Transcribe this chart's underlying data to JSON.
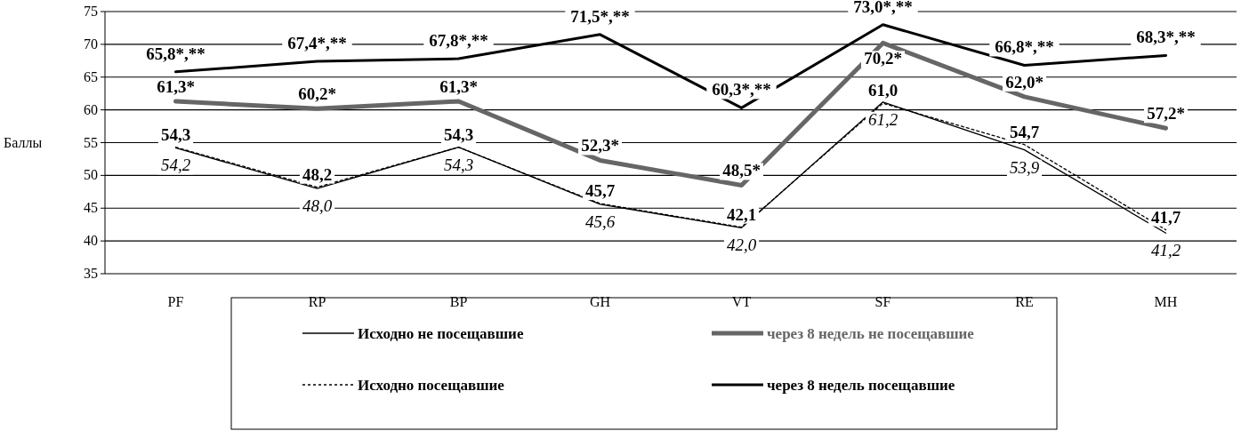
{
  "chart_data": {
    "type": "line",
    "ylabel": "Баллы",
    "categories": [
      "PF",
      "RP",
      "BP",
      "GH",
      "VT",
      "SF",
      "RE",
      "MH"
    ],
    "ylim": [
      35,
      75
    ],
    "yticks": [
      35,
      40,
      45,
      50,
      55,
      60,
      65,
      70,
      75
    ],
    "grid": "y",
    "legend": "bottom",
    "series": [
      {
        "name": "Исходно не посещавшие",
        "color": "#000000",
        "line_style": "solid",
        "values": [
          54.2,
          48.0,
          54.3,
          45.6,
          42.0,
          61.2,
          53.9,
          41.2
        ],
        "value_labels": [
          "54,2",
          "48,0",
          "54,3",
          "45,6",
          "42,0",
          "61,2",
          "53,9",
          "41,2"
        ]
      },
      {
        "name": "Исходно посещавшие",
        "color": "#000000",
        "line_style": "dotted",
        "values": [
          54.3,
          48.2,
          54.3,
          45.7,
          42.1,
          61.0,
          54.7,
          41.7
        ],
        "value_labels": [
          "54,3",
          "48,2",
          "54,3",
          "45,7",
          "42,1",
          "61,0",
          "54,7",
          "41,7"
        ]
      },
      {
        "name": "через 8 недель не посещавшие",
        "color": "#666666",
        "line_style": "solid",
        "values": [
          61.3,
          60.2,
          61.3,
          52.3,
          48.5,
          70.2,
          62.0,
          57.2
        ],
        "value_labels": [
          "61,3*",
          "60,2*",
          "61,3*",
          "52,3*",
          "48,5*",
          "70,2*",
          "62,0*",
          "57,2*"
        ]
      },
      {
        "name": "через 8 недель посещавшие",
        "color": "#000000",
        "line_style": "solid",
        "values": [
          65.8,
          67.4,
          67.8,
          71.5,
          60.3,
          73.0,
          66.8,
          68.3
        ],
        "value_labels": [
          "65,8*,**",
          "67,4*,**",
          "67,8*,**",
          "71,5*,**",
          "60,3*,**",
          "73,0*,**",
          "66,8*,**",
          "68,3*,**"
        ]
      }
    ]
  }
}
